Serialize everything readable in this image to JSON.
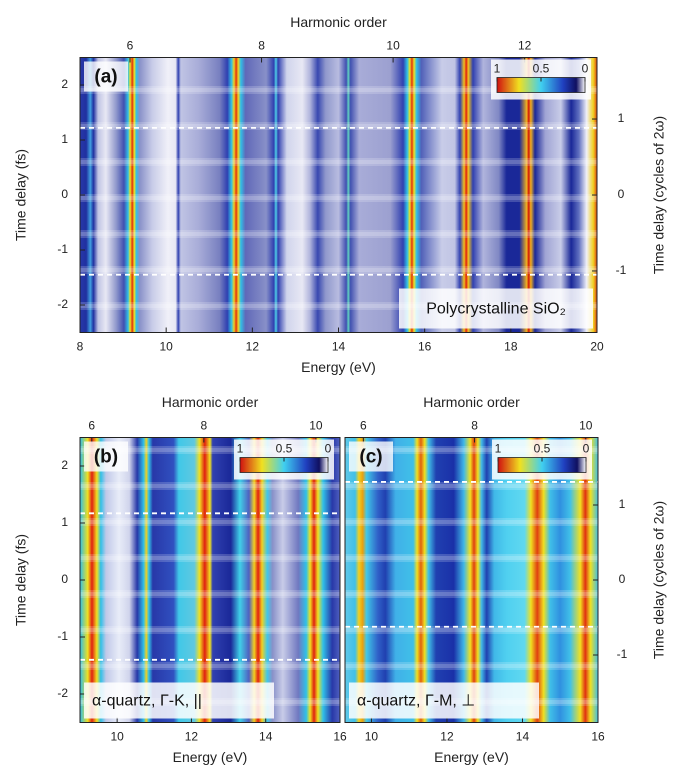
{
  "chart_data": [
    {
      "type": "heatmap",
      "label": "(a)",
      "annotation": "Polycrystalline SiO₂",
      "xlabel": "Energy (eV)",
      "x2label": "Harmonic order",
      "ylabel": "Time delay (fs)",
      "y2label": "Time delay (cycles of 2ω)",
      "xlim": [
        8,
        20
      ],
      "xticks": [
        8,
        10,
        12,
        14,
        16,
        18,
        20
      ],
      "x2lim": [
        5.24,
        13.1
      ],
      "x2ticks": [
        6,
        8,
        10,
        12
      ],
      "ylim": [
        -2.5,
        2.5
      ],
      "yticks": [
        -2,
        -1,
        0,
        1,
        2
      ],
      "y2lim": [
        -1.81,
        1.81
      ],
      "y2ticks": [
        -1,
        0,
        1
      ],
      "dashed_lines": [
        1.22,
        -1.45
      ],
      "colorbar": {
        "lim": [
          1,
          0
        ],
        "ticks": [
          1,
          0.5,
          0
        ]
      }
    },
    {
      "type": "heatmap",
      "label": "(b)",
      "annotation": "α-quartz, Γ-K, ||",
      "xlabel": "Energy (eV)",
      "x2label": "Harmonic order",
      "ylabel": "Time delay (fs)",
      "xlim": [
        9,
        16
      ],
      "xticks": [
        10,
        12,
        14,
        16
      ],
      "x2lim": [
        5.79,
        10.43
      ],
      "x2ticks": [
        6,
        8,
        10
      ],
      "ylim": [
        -2.5,
        2.5
      ],
      "yticks": [
        -2,
        -1,
        0,
        1,
        2
      ],
      "dashed_lines": [
        1.17,
        -1.4
      ],
      "colorbar": {
        "lim": [
          1,
          0
        ],
        "ticks": [
          1,
          0.5,
          0
        ]
      }
    },
    {
      "type": "heatmap",
      "label": "(c)",
      "annotation": "α-quartz, Γ-M, ⊥",
      "xlabel": "Energy (eV)",
      "x2label": "Harmonic order",
      "y2label": "Time delay (cycles of 2ω)",
      "xlim": [
        9.3,
        16
      ],
      "xticks": [
        10,
        12,
        14,
        16
      ],
      "x2lim": [
        5.67,
        10.22
      ],
      "x2ticks": [
        6,
        8,
        10
      ],
      "ylim": [
        -2.5,
        2.5
      ],
      "y2lim": [
        -1.9,
        1.9
      ],
      "y2ticks": [
        -1,
        0,
        1
      ],
      "dashed_lines": [
        1.72,
        -0.82
      ],
      "colorbar": {
        "lim": [
          1,
          0
        ],
        "ticks": [
          1,
          0.5,
          0
        ]
      }
    }
  ]
}
